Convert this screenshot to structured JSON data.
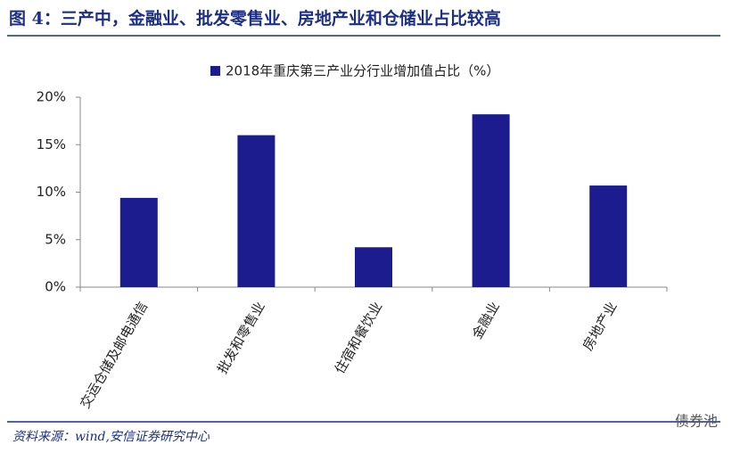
{
  "chart_data": {
    "type": "bar",
    "title": "图 4：三产中，金融业、批发零售业、房地产业和仓储业占比较高",
    "categories": [
      "交运仓储及邮电通信",
      "批发和零售业",
      "住宿和餐饮业",
      "金融业",
      "房地产业"
    ],
    "series": [
      {
        "name": "2018年重庆第三产业分行业增加值占比（%）",
        "color": "#1c1c8f",
        "values": [
          9.4,
          16.0,
          4.2,
          18.2,
          10.7
        ]
      }
    ],
    "ylim": [
      0,
      20
    ],
    "yticks": [
      {
        "value": 0,
        "label": "0%"
      },
      {
        "value": 5,
        "label": "5%"
      },
      {
        "value": 10,
        "label": "10%"
      },
      {
        "value": 15,
        "label": "15%"
      },
      {
        "value": 20,
        "label": "20%"
      }
    ],
    "grid": false,
    "legend": "top",
    "source": "资料来源：wind,安信证券研究中心",
    "watermark": "债券池"
  }
}
